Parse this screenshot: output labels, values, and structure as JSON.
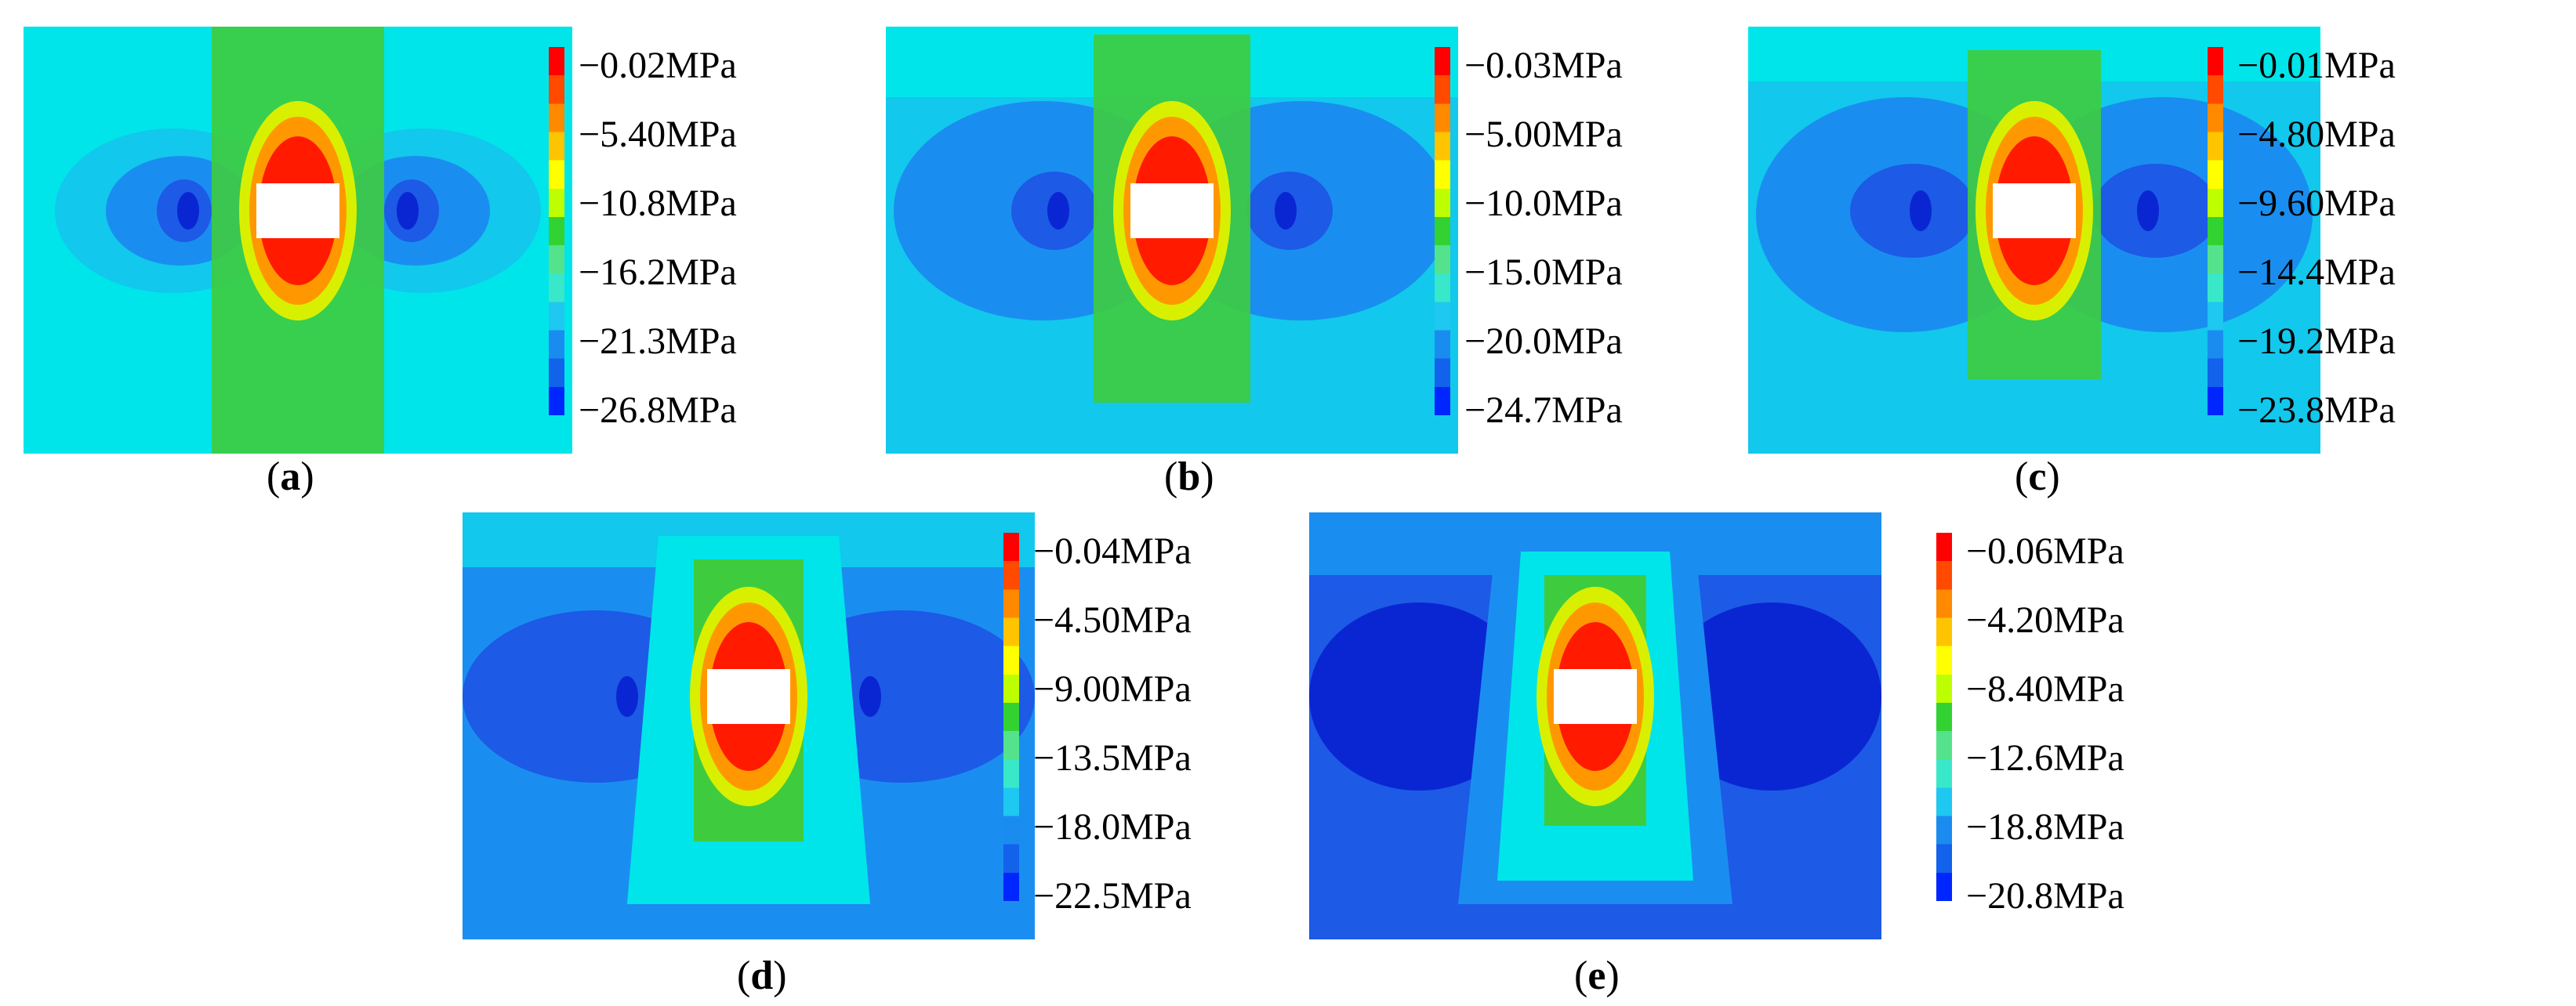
{
  "figure": {
    "panels": [
      {
        "id": "a",
        "caption_label": "a",
        "legend_labels": [
          "−0.02MPa",
          "−5.40MPa",
          "−10.8MPa",
          "−16.2MPa",
          "−21.3MPa",
          "−26.8MPa"
        ]
      },
      {
        "id": "b",
        "caption_label": "b",
        "legend_labels": [
          "−0.03MPa",
          "−5.00MPa",
          "−10.0MPa",
          "−15.0MPa",
          "−20.0MPa",
          "−24.7MPa"
        ]
      },
      {
        "id": "c",
        "caption_label": "c",
        "legend_labels": [
          "−0.01MPa",
          "−4.80MPa",
          "−9.60MPa",
          "−14.4MPa",
          "−19.2MPa",
          "−23.8MPa"
        ]
      },
      {
        "id": "d",
        "caption_label": "d",
        "legend_labels": [
          "−0.04MPa",
          "−4.50MPa",
          "−9.00MPa",
          "−13.5MPa",
          "−18.0MPa",
          "−22.5MPa"
        ]
      },
      {
        "id": "e",
        "caption_label": "e",
        "legend_labels": [
          "−0.06MPa",
          "−4.20MPa",
          "−8.40MPa",
          "−12.6MPa",
          "−18.8MPa",
          "−20.8MPa"
        ]
      }
    ],
    "legend_colors": [
      "#ff0000",
      "#ff4a00",
      "#ff8a00",
      "#ffc400",
      "#ffff00",
      "#bdff00",
      "#32d232",
      "#55e28c",
      "#38e8c8",
      "#1ec8f0",
      "#1a8cf0",
      "#1262ec",
      "#0026ff"
    ],
    "contour_colors": {
      "background_light": "#00e5ea",
      "background_mid": "#12c8ec",
      "blue": "#1a8ef0",
      "deep_blue": "#1d5ae6",
      "darkest_blue": "#0a26d2",
      "green": "#3ecc3e",
      "yellow": "#d8f000",
      "orange": "#ff9800",
      "red": "#ff1a00",
      "opening": "#ffffff"
    }
  }
}
